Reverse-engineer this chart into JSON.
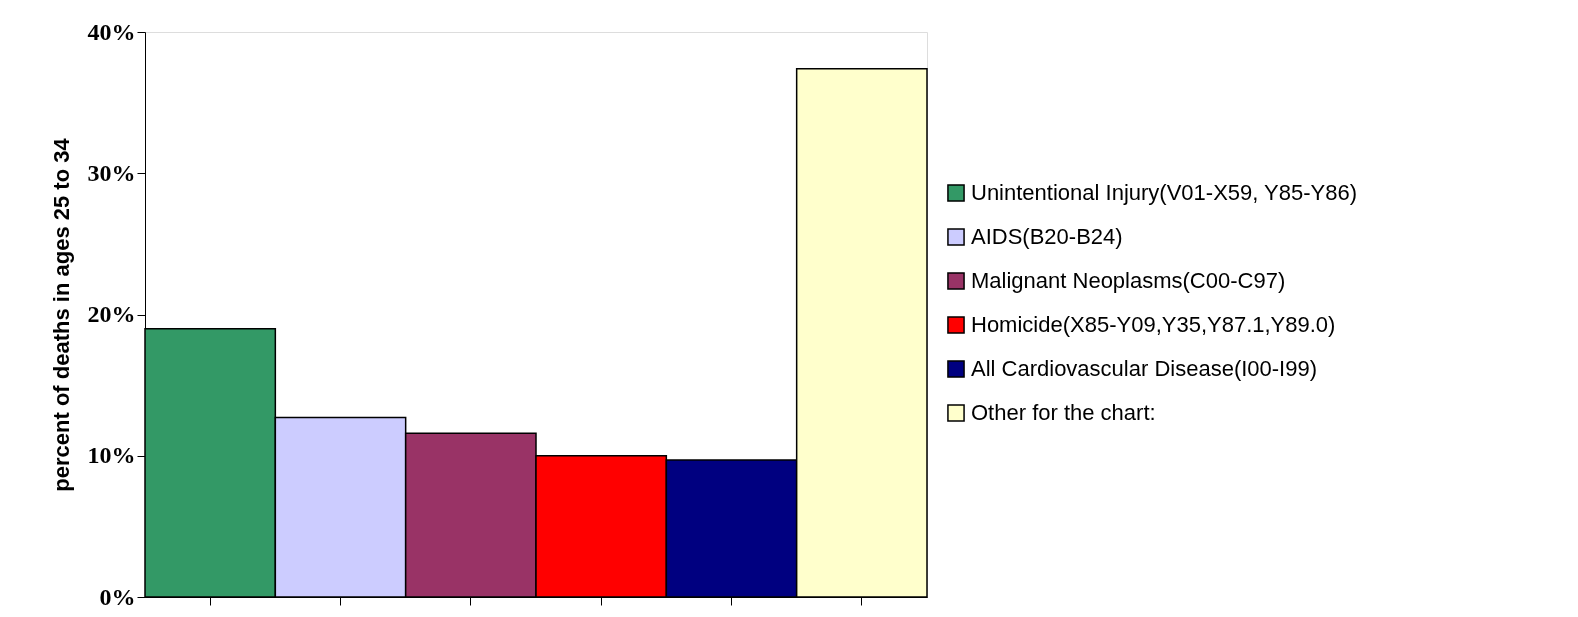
{
  "chart_data": {
    "type": "bar",
    "ylabel": "percent of deaths in ages 25 to 34",
    "categories": [
      null,
      null,
      null,
      null,
      null,
      null
    ],
    "series": [
      {
        "name": "Unintentional Injury(V01-X59, Y85-Y86)",
        "color": "#339966",
        "values": [
          19.0,
          null,
          null,
          null,
          null,
          null
        ]
      },
      {
        "name": "AIDS(B20-B24)",
        "color": "#ccccff",
        "values": [
          null,
          12.7,
          null,
          null,
          null,
          null
        ]
      },
      {
        "name": "Malignant Neoplasms(C00-C97)",
        "color": "#993366",
        "values": [
          null,
          null,
          11.6,
          null,
          null,
          null
        ]
      },
      {
        "name": "Homicide(X85-Y09,Y35,Y87.1,Y89.0)",
        "color": "#ff0000",
        "values": [
          null,
          null,
          null,
          10.0,
          null,
          null
        ]
      },
      {
        "name": "All Cardiovascular Disease(I00-I99)",
        "color": "#000080",
        "values": [
          null,
          null,
          null,
          null,
          9.7,
          null
        ]
      },
      {
        "name": "Other for the chart:",
        "color": "#ffffcc",
        "values": [
          null,
          null,
          null,
          null,
          null,
          37.4
        ]
      }
    ],
    "ylim": [
      0,
      40
    ],
    "yticks": [
      {
        "value": 0,
        "label": "0%"
      },
      {
        "value": 10,
        "label": "10%"
      },
      {
        "value": 20,
        "label": "20%"
      },
      {
        "value": 30,
        "label": "30%"
      },
      {
        "value": 40,
        "label": "40%"
      }
    ],
    "grid": false,
    "legend": "right"
  }
}
